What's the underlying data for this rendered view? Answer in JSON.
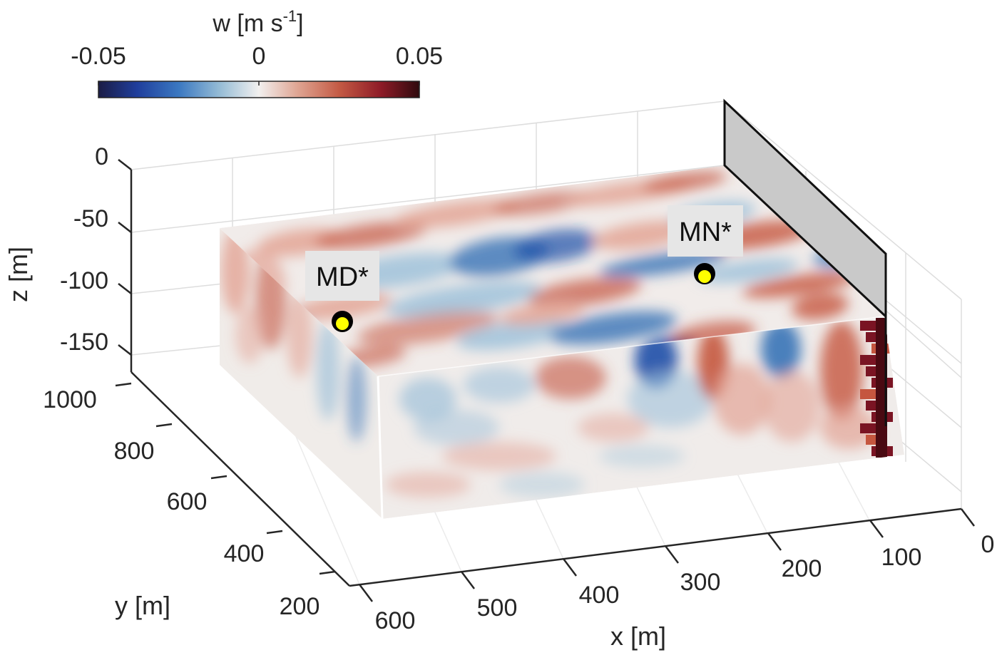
{
  "chart_data": {
    "type": "heatmap",
    "title": "",
    "colorbar": {
      "label_main": "w [m s",
      "label_sup": "-1",
      "label_end": "]",
      "range": [
        -0.05,
        0.05
      ],
      "ticks": [
        "-0.05",
        "0",
        "0.05"
      ],
      "colormap": "diverging blue-white-red"
    },
    "axes": {
      "x": {
        "label": "x [m]",
        "ticks": [
          "0",
          "100",
          "200",
          "300",
          "400",
          "500",
          "600"
        ]
      },
      "y": {
        "label": "y [m]",
        "ticks": [
          "200",
          "400",
          "600",
          "800",
          "1000"
        ]
      },
      "z": {
        "label": "z [m]",
        "ticks": [
          "0",
          "-50",
          "-100",
          "-150"
        ]
      }
    },
    "annotations": [
      {
        "text": "MD*",
        "marker_color": "#ffff00"
      },
      {
        "text": "MN*",
        "marker_color": "#ffff00"
      }
    ],
    "grid": true,
    "legend": "none"
  }
}
